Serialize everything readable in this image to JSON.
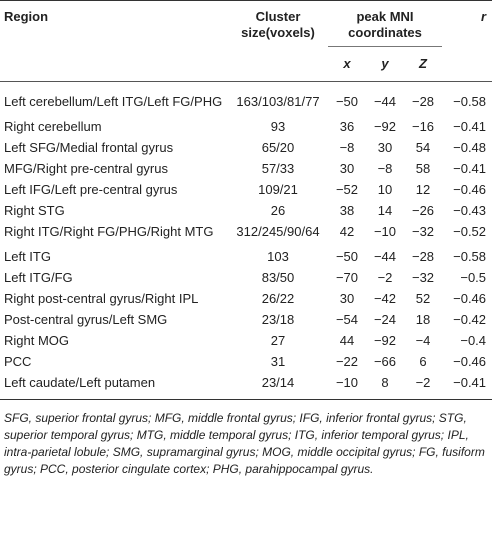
{
  "headers": {
    "region": "Region",
    "cluster": "Cluster size(voxels)",
    "peak": "peak MNI coordinates",
    "x": "x",
    "y": "y",
    "z": "Z",
    "r": "r"
  },
  "rows": [
    {
      "region": "Left cerebellum/Left ITG/Left FG/PHG",
      "cluster": "163/103/81/77",
      "x": "−50",
      "y": "−44",
      "z": "−28",
      "r": "−0.58"
    },
    {
      "region": "Right cerebellum",
      "cluster": "93",
      "x": "36",
      "y": "−92",
      "z": "−16",
      "r": "−0.41"
    },
    {
      "region": "Left SFG/Medial frontal gyrus",
      "cluster": "65/20",
      "x": "−8",
      "y": "30",
      "z": "54",
      "r": "−0.48"
    },
    {
      "region": "MFG/Right pre-central gyrus",
      "cluster": "57/33",
      "x": "30",
      "y": "−8",
      "z": "58",
      "r": "−0.41"
    },
    {
      "region": "Left IFG/Left pre-central gyrus",
      "cluster": "109/21",
      "x": "−52",
      "y": "10",
      "z": "12",
      "r": "−0.46"
    },
    {
      "region": "Right STG",
      "cluster": "26",
      "x": "38",
      "y": "14",
      "z": "−26",
      "r": "−0.43"
    },
    {
      "region": "Right ITG/Right FG/PHG/Right MTG",
      "cluster": "312/245/90/64",
      "x": "42",
      "y": "−10",
      "z": "−32",
      "r": "−0.52"
    },
    {
      "region": "Left ITG",
      "cluster": "103",
      "x": "−50",
      "y": "−44",
      "z": "−28",
      "r": "−0.58"
    },
    {
      "region": "Left ITG/FG",
      "cluster": "83/50",
      "x": "−70",
      "y": "−2",
      "z": "−32",
      "r": "−0.5"
    },
    {
      "region": "Right post-central gyrus/Right IPL",
      "cluster": "26/22",
      "x": "30",
      "y": "−42",
      "z": "52",
      "r": "−0.46"
    },
    {
      "region": "Post-central gyrus/Left SMG",
      "cluster": "23/18",
      "x": "−54",
      "y": "−24",
      "z": "18",
      "r": "−0.42"
    },
    {
      "region": "Right MOG",
      "cluster": "27",
      "x": "44",
      "y": "−92",
      "z": "−4",
      "r": "−0.4"
    },
    {
      "region": "PCC",
      "cluster": "31",
      "x": "−22",
      "y": "−66",
      "z": "6",
      "r": "−0.46"
    },
    {
      "region": "Left caudate/Left putamen",
      "cluster": "23/14",
      "x": "−10",
      "y": "8",
      "z": "−2",
      "r": "−0.41"
    }
  ],
  "footnote": "SFG, superior frontal gyrus; MFG, middle frontal gyrus; IFG, inferior frontal gyrus; STG, superior temporal gyrus; MTG, middle temporal gyrus; ITG, inferior temporal gyrus; IPL, intra-parietal lobule; SMG, supramarginal gyrus; MOG, middle occipital gyrus; FG, fusiform gyrus; PCC, posterior cingulate cortex; PHG, parahippocampal gyrus."
}
